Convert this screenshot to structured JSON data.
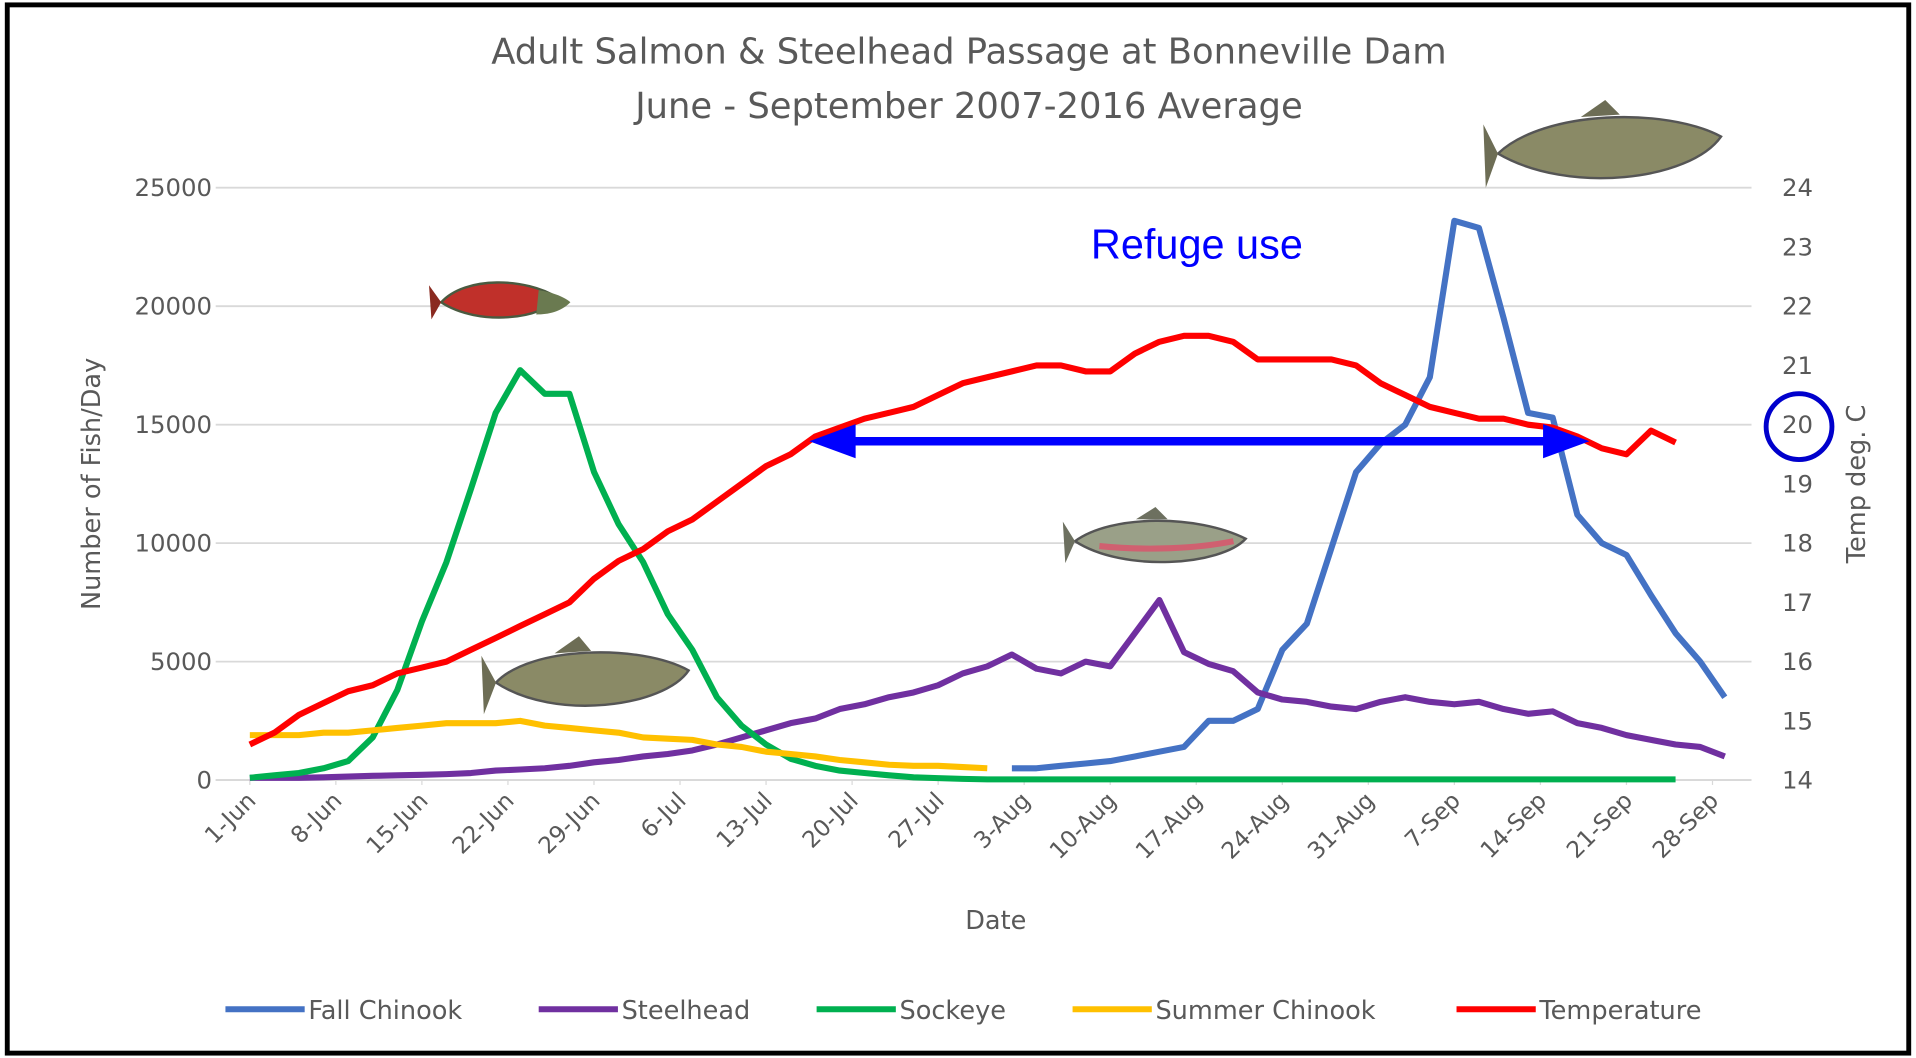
{
  "chart_data": {
    "type": "line",
    "title": "Adult Salmon & Steelhead Passage at Bonneville Dam",
    "subtitle": "June - September 2007-2016 Average",
    "x_label": "Date",
    "y_label": "Number of Fish/Day",
    "y2_label": "Temp deg. C",
    "annotation": "Refuge use",
    "x": [
      0,
      2,
      4,
      6,
      8,
      10,
      12,
      14,
      16,
      18,
      20,
      22,
      24,
      26,
      28,
      30,
      32,
      34,
      36,
      38,
      40,
      42,
      44,
      46,
      48,
      50,
      52,
      54,
      56,
      58,
      60,
      62,
      64,
      66,
      68,
      70,
      72,
      74,
      76,
      78,
      80,
      82,
      84,
      86,
      88,
      90,
      92,
      94,
      96,
      98,
      100,
      102,
      104,
      106,
      108,
      110,
      112,
      114,
      116,
      118,
      120
    ],
    "xlim": [
      0,
      119
    ],
    "xticks": [
      {
        "value": 0,
        "label": "1-Jun"
      },
      {
        "value": 7,
        "label": "8-Jun"
      },
      {
        "value": 14,
        "label": "15-Jun"
      },
      {
        "value": 21,
        "label": "22-Jun"
      },
      {
        "value": 28,
        "label": "29-Jun"
      },
      {
        "value": 35,
        "label": "6-Jul"
      },
      {
        "value": 42,
        "label": "13-Jul"
      },
      {
        "value": 49,
        "label": "20-Jul"
      },
      {
        "value": 56,
        "label": "27-Jul"
      },
      {
        "value": 63,
        "label": "3-Aug"
      },
      {
        "value": 70,
        "label": "10-Aug"
      },
      {
        "value": 77,
        "label": "17-Aug"
      },
      {
        "value": 84,
        "label": "24-Aug"
      },
      {
        "value": 91,
        "label": "31-Aug"
      },
      {
        "value": 98,
        "label": "7-Sep"
      },
      {
        "value": 105,
        "label": "14-Sep"
      },
      {
        "value": 112,
        "label": "21-Sep"
      },
      {
        "value": 119,
        "label": "28-Sep"
      }
    ],
    "ylim": [
      0,
      25000
    ],
    "yticks": [
      0,
      5000,
      10000,
      15000,
      20000,
      25000
    ],
    "y2lim": [
      14,
      24
    ],
    "y2ticks": [
      14,
      15,
      16,
      17,
      18,
      19,
      20,
      21,
      22,
      23,
      24
    ],
    "grid": true,
    "legend": "bottom",
    "series": [
      {
        "name": "Fall Chinook",
        "color": "#4472c4",
        "values": [
          null,
          null,
          null,
          null,
          null,
          null,
          null,
          null,
          null,
          null,
          null,
          null,
          null,
          null,
          null,
          null,
          null,
          null,
          null,
          null,
          null,
          null,
          null,
          null,
          null,
          null,
          null,
          null,
          null,
          null,
          null,
          500,
          500,
          600,
          700,
          800,
          1000,
          1200,
          1400,
          2500,
          2500,
          3000,
          5500,
          6600,
          9800,
          13000,
          14200,
          15000,
          17000,
          23600,
          23300,
          19500,
          15500,
          15300,
          11200,
          10000,
          9500,
          7800,
          6200,
          5000,
          3500
        ]
      },
      {
        "name": "Steelhead",
        "color": "#7030a0",
        "values": [
          100,
          100,
          100,
          120,
          150,
          180,
          200,
          220,
          250,
          300,
          400,
          450,
          500,
          600,
          750,
          850,
          1000,
          1100,
          1250,
          1500,
          1800,
          2100,
          2400,
          2600,
          3000,
          3200,
          3500,
          3700,
          4000,
          4500,
          4800,
          5300,
          4700,
          4500,
          5000,
          4800,
          6200,
          7600,
          5400,
          4900,
          4600,
          3700,
          3400,
          3300,
          3100,
          3000,
          3300,
          3500,
          3300,
          3200,
          3300,
          3000,
          2800,
          2900,
          2400,
          2200,
          1900,
          1700,
          1500,
          1400,
          1000
        ]
      },
      {
        "name": "Sockeye",
        "color": "#00b050",
        "values": [
          100,
          200,
          300,
          500,
          800,
          1800,
          3800,
          6700,
          9200,
          12300,
          15500,
          17300,
          16300,
          16300,
          13000,
          10800,
          9200,
          7000,
          5500,
          3500,
          2300,
          1500,
          900,
          600,
          400,
          300,
          200,
          120,
          80,
          50,
          30,
          30,
          30,
          30,
          30,
          30,
          30,
          30,
          30,
          30,
          30,
          30,
          30,
          30,
          30,
          30,
          30,
          30,
          30,
          30,
          30,
          30,
          30,
          30,
          30,
          30,
          30,
          30,
          30,
          null,
          null
        ]
      },
      {
        "name": "Summer Chinook",
        "color": "#ffc000",
        "values": [
          1900,
          1900,
          1900,
          2000,
          2000,
          2100,
          2200,
          2300,
          2400,
          2400,
          2400,
          2500,
          2300,
          2200,
          2100,
          2000,
          1800,
          1750,
          1700,
          1500,
          1400,
          1200,
          1100,
          1000,
          850,
          750,
          650,
          600,
          600,
          550,
          500,
          null,
          null,
          null,
          null,
          null,
          null,
          null,
          null,
          null,
          null,
          null,
          null,
          null,
          null,
          null,
          null,
          null,
          null,
          null,
          null,
          null,
          null,
          null,
          null,
          null,
          null,
          null,
          null,
          null,
          null
        ]
      },
      {
        "name": "Temperature",
        "color": "#ff0000",
        "axis": "y2",
        "values": [
          14.6,
          14.8,
          15.1,
          15.3,
          15.5,
          15.6,
          15.8,
          15.9,
          16.0,
          16.2,
          16.4,
          16.6,
          16.8,
          17.0,
          17.4,
          17.7,
          17.9,
          18.2,
          18.4,
          18.7,
          19.0,
          19.3,
          19.5,
          19.8,
          19.95,
          20.1,
          20.2,
          20.3,
          20.5,
          20.7,
          20.8,
          20.9,
          21.0,
          21.0,
          20.9,
          20.9,
          21.2,
          21.4,
          21.5,
          21.5,
          21.4,
          21.1,
          21.1,
          21.1,
          21.1,
          21.0,
          20.7,
          20.5,
          20.3,
          20.2,
          20.1,
          20.1,
          20.0,
          19.95,
          19.8,
          19.6,
          19.5,
          19.9,
          19.7,
          null,
          null
        ]
      }
    ]
  }
}
